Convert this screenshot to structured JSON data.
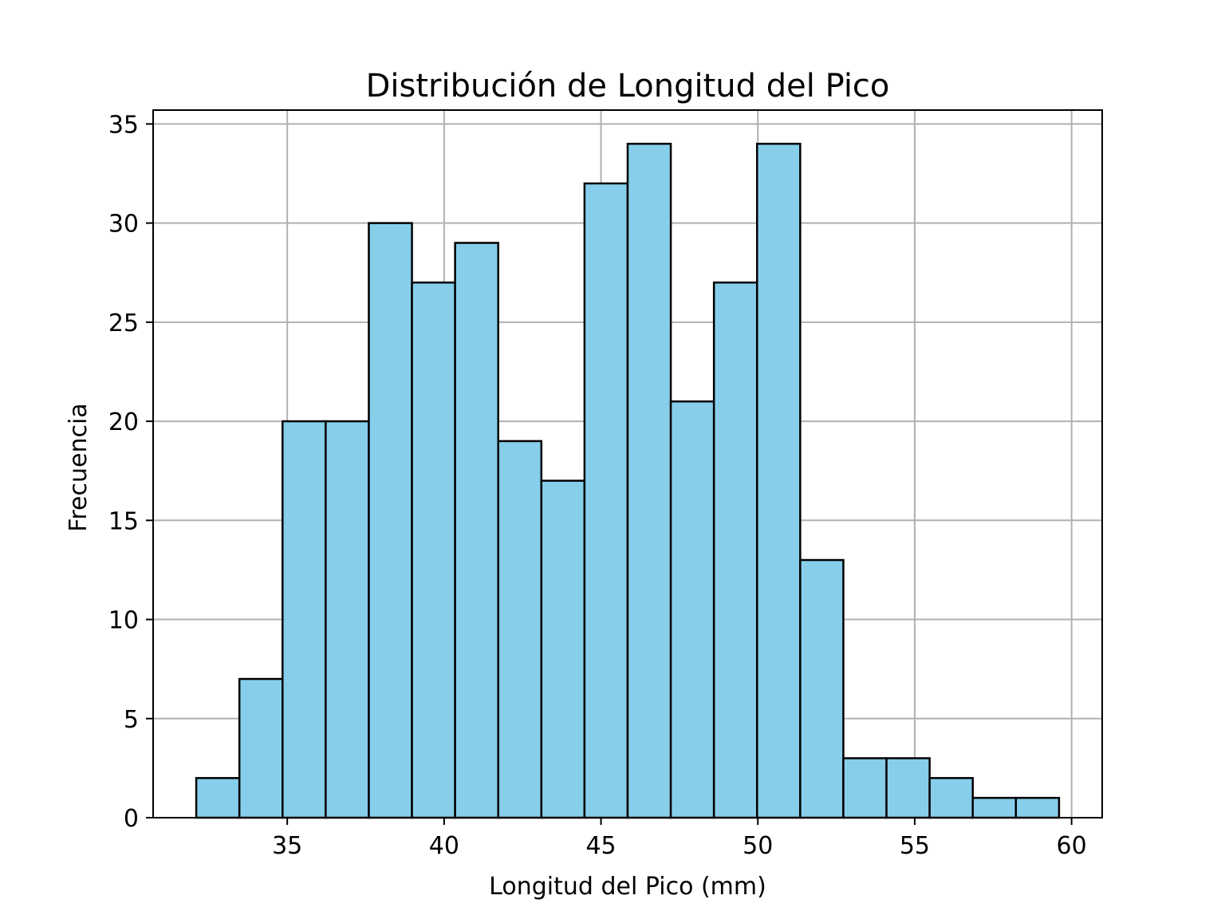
{
  "chart_data": {
    "type": "histogram",
    "title": "Distribución de Longitud del Pico",
    "xlabel": "Longitud del Pico (mm)",
    "ylabel": "Frecuencia",
    "bin_edges": [
      32.1,
      33.475,
      34.85,
      36.225,
      37.6,
      38.975,
      40.35,
      41.725,
      43.1,
      44.475,
      45.85,
      47.225,
      48.6,
      49.975,
      51.35,
      52.725,
      54.1,
      55.475,
      56.85,
      58.225,
      59.6
    ],
    "values": [
      2,
      7,
      20,
      20,
      30,
      27,
      29,
      19,
      17,
      32,
      34,
      21,
      27,
      34,
      13,
      3,
      3,
      2,
      1,
      1
    ],
    "xlim": [
      30.725,
      60.975
    ],
    "ylim": [
      0,
      35.7
    ],
    "xticks": [
      35,
      40,
      45,
      50,
      55,
      60
    ],
    "yticks": [
      0,
      5,
      10,
      15,
      20,
      25,
      30,
      35
    ],
    "bar_color": "#87CEEB",
    "edge_color": "#000000",
    "grid": true
  }
}
